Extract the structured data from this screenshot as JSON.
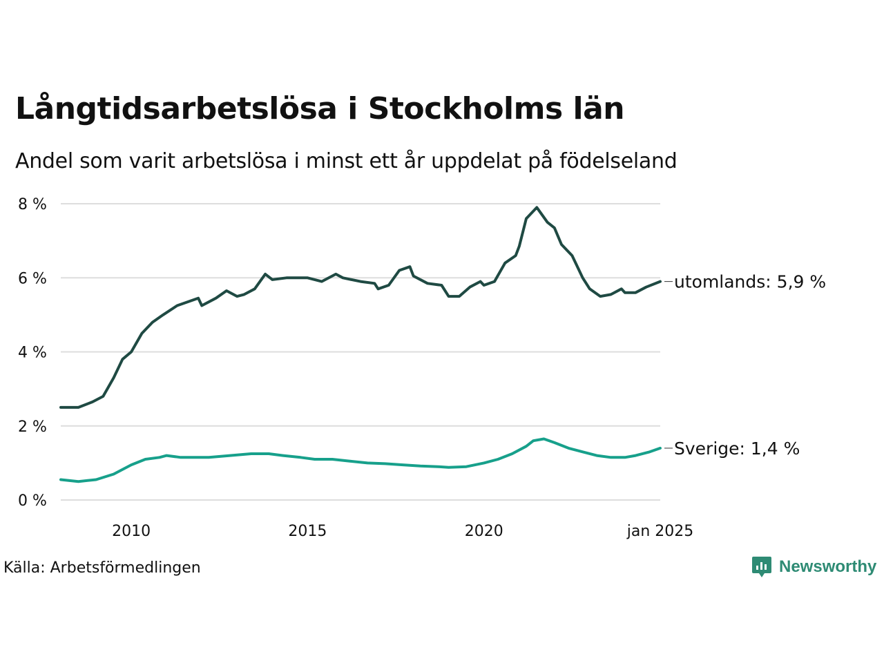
{
  "title": "Långtidsarbetslösa i Stockholms län",
  "subtitle": "Andel som varit arbetslösa i minst ett år uppdelat på födelseland",
  "source": "Källa: Arbetsförmedlingen",
  "brand": "Newsworthy",
  "colors": {
    "utomlands": "#1f4a43",
    "sverige": "#17a08b",
    "grid": "#dddddd",
    "brand": "#2e8b74"
  },
  "chart_data": {
    "type": "line",
    "title": "Långtidsarbetslösa i Stockholms län",
    "subtitle": "Andel som varit arbetslösa i minst ett år uppdelat på födelseland",
    "ylim": [
      0,
      8
    ],
    "yticks": [
      0,
      2,
      4,
      6,
      8
    ],
    "ytick_labels": [
      "0 %",
      "2 %",
      "4 %",
      "6 %",
      "8 %"
    ],
    "xlim": [
      2008.0,
      2025.0
    ],
    "xticks": [
      2010,
      2015,
      2020,
      2025
    ],
    "xtick_labels": [
      "2010",
      "2015",
      "2020",
      "jan 2025"
    ],
    "grid": "horizontal",
    "series": [
      {
        "name": "utomlands",
        "end_label": "utomlands: 5,9 %",
        "x": [
          2008.0,
          2008.5,
          2008.9,
          2009.2,
          2009.5,
          2009.75,
          2010.0,
          2010.3,
          2010.6,
          2010.9,
          2011.3,
          2011.6,
          2011.9,
          2012.0,
          2012.4,
          2012.7,
          2013.0,
          2013.2,
          2013.5,
          2013.8,
          2014.0,
          2014.4,
          2014.8,
          2015.0,
          2015.4,
          2015.8,
          2016.0,
          2016.5,
          2016.9,
          2017.0,
          2017.3,
          2017.6,
          2017.9,
          2018.0,
          2018.4,
          2018.8,
          2019.0,
          2019.3,
          2019.6,
          2019.9,
          2020.0,
          2020.3,
          2020.6,
          2020.9,
          2021.0,
          2021.2,
          2021.5,
          2021.8,
          2022.0,
          2022.2,
          2022.5,
          2022.8,
          2023.0,
          2023.3,
          2023.6,
          2023.9,
          2024.0,
          2024.3,
          2024.6,
          2025.0
        ],
        "values": [
          2.5,
          2.5,
          2.65,
          2.8,
          3.3,
          3.8,
          4.0,
          4.5,
          4.8,
          5.0,
          5.25,
          5.35,
          5.45,
          5.25,
          5.45,
          5.65,
          5.5,
          5.55,
          5.7,
          6.1,
          5.95,
          6.0,
          6.0,
          6.0,
          5.9,
          6.1,
          6.0,
          5.9,
          5.85,
          5.7,
          5.8,
          6.2,
          6.3,
          6.05,
          5.85,
          5.8,
          5.5,
          5.5,
          5.75,
          5.9,
          5.8,
          5.9,
          6.4,
          6.6,
          6.85,
          7.6,
          7.9,
          7.5,
          7.35,
          6.9,
          6.6,
          6.0,
          5.7,
          5.5,
          5.55,
          5.7,
          5.6,
          5.6,
          5.75,
          5.9
        ]
      },
      {
        "name": "Sverige",
        "end_label": "Sverige: 1,4 %",
        "x": [
          2008.0,
          2008.5,
          2009.0,
          2009.5,
          2010.0,
          2010.4,
          2010.8,
          2011.0,
          2011.4,
          2011.8,
          2012.2,
          2012.8,
          2013.4,
          2013.9,
          2014.3,
          2014.8,
          2015.2,
          2015.7,
          2016.2,
          2016.7,
          2017.2,
          2017.7,
          2018.2,
          2018.7,
          2019.0,
          2019.5,
          2020.0,
          2020.4,
          2020.8,
          2021.2,
          2021.4,
          2021.7,
          2022.0,
          2022.4,
          2022.8,
          2023.2,
          2023.6,
          2024.0,
          2024.3,
          2024.7,
          2025.0
        ],
        "values": [
          0.55,
          0.5,
          0.55,
          0.7,
          0.95,
          1.1,
          1.15,
          1.2,
          1.15,
          1.15,
          1.15,
          1.2,
          1.25,
          1.25,
          1.2,
          1.15,
          1.1,
          1.1,
          1.05,
          1.0,
          0.98,
          0.95,
          0.92,
          0.9,
          0.88,
          0.9,
          1.0,
          1.1,
          1.25,
          1.45,
          1.6,
          1.65,
          1.55,
          1.4,
          1.3,
          1.2,
          1.15,
          1.15,
          1.2,
          1.3,
          1.4
        ]
      }
    ]
  }
}
